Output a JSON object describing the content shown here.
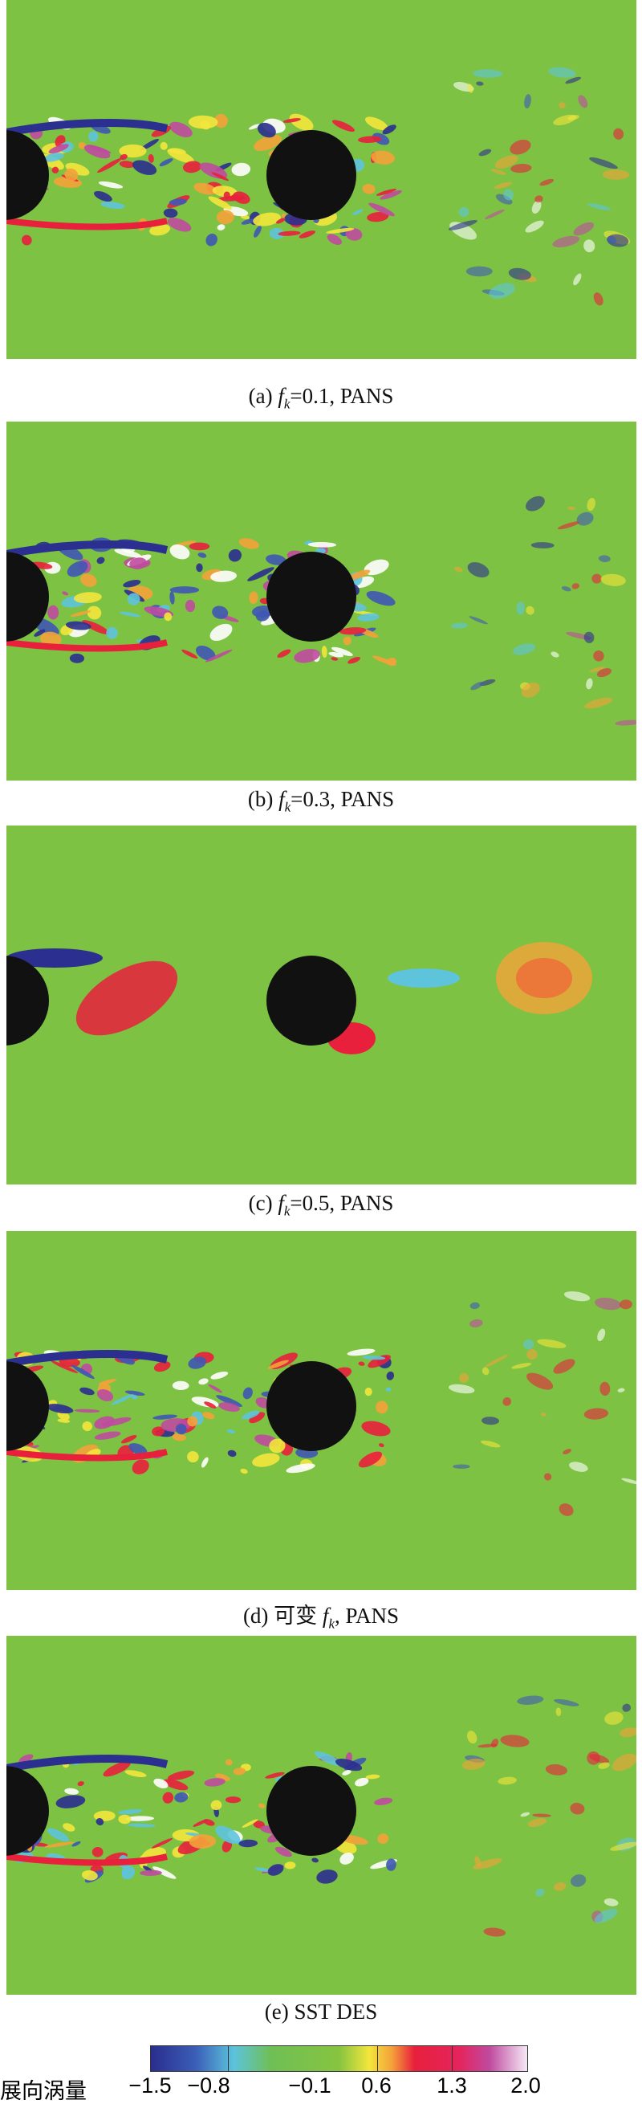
{
  "panels": [
    {
      "label": "(a)",
      "var": "f",
      "sub": "k",
      "text": "=0.1, PANS"
    },
    {
      "label": "(b)",
      "var": "f",
      "sub": "k",
      "text": "=0.3, PANS"
    },
    {
      "label": "(c)",
      "var": "f",
      "sub": "k",
      "text": "=0.5, PANS"
    },
    {
      "label": "(d) 可变",
      "var": "f",
      "sub": "k",
      "text": ", PANS"
    },
    {
      "label": "(e) SST DES"
    }
  ],
  "colorbar": {
    "title": "展向涡量",
    "ticks": [
      "−1.5",
      "−0.8",
      "−0.1",
      "0.6",
      "1.3",
      "2.0"
    ]
  }
}
